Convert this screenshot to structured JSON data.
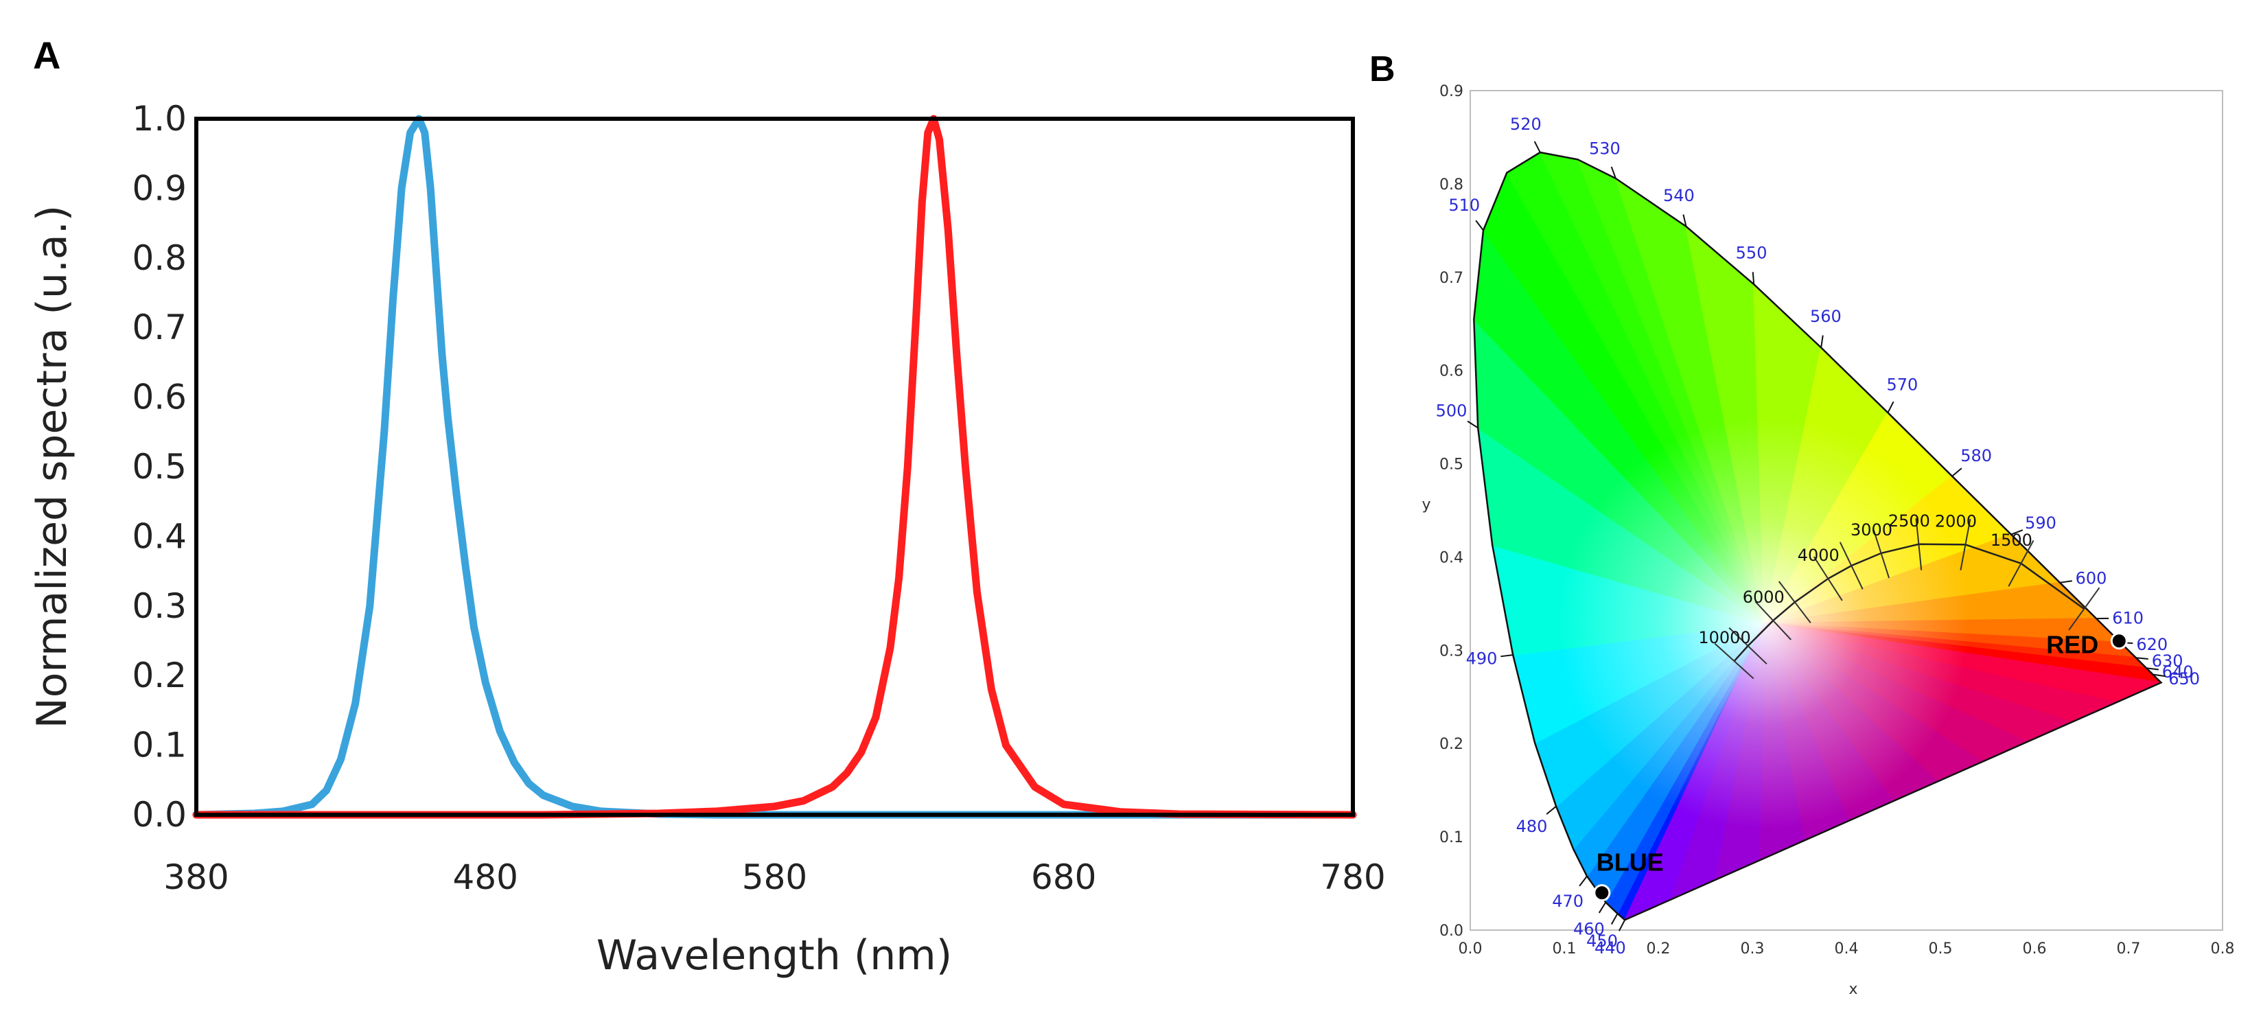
{
  "panels": {
    "a": "A",
    "b": "B"
  },
  "chart_data": [
    {
      "type": "line",
      "panel": "A",
      "xlabel": "Wavelength (nm)",
      "ylabel": "Normalized spectra (u.a.)",
      "xlim": [
        380,
        780
      ],
      "ylim": [
        0,
        1
      ],
      "x_ticks": [
        "380",
        "480",
        "580",
        "680",
        "780"
      ],
      "y_ticks": [
        "0.0",
        "0.1",
        "0.2",
        "0.3",
        "0.4",
        "0.5",
        "0.6",
        "0.7",
        "0.8",
        "0.9",
        "1.0"
      ],
      "grid": false,
      "series": [
        {
          "color": "#3aa3dc",
          "x": [
            380,
            400,
            410,
            420,
            425,
            430,
            435,
            440,
            445,
            448,
            451,
            454,
            457,
            459,
            461,
            463,
            465,
            467,
            470,
            473,
            476,
            480,
            485,
            490,
            495,
            500,
            510,
            520,
            540,
            560,
            600,
            680,
            780
          ],
          "y": [
            0,
            0.002,
            0.005,
            0.015,
            0.035,
            0.08,
            0.16,
            0.3,
            0.55,
            0.74,
            0.9,
            0.98,
            1.0,
            0.98,
            0.9,
            0.78,
            0.66,
            0.57,
            0.46,
            0.36,
            0.27,
            0.19,
            0.12,
            0.075,
            0.045,
            0.028,
            0.012,
            0.005,
            0.001,
            0,
            0,
            0,
            0
          ]
        },
        {
          "color": "#ff1f1f",
          "x": [
            380,
            500,
            540,
            560,
            580,
            590,
            600,
            605,
            610,
            615,
            620,
            623,
            626,
            629,
            631,
            633,
            635,
            637,
            640,
            643,
            646,
            650,
            655,
            660,
            670,
            680,
            700,
            720,
            780
          ],
          "y": [
            0,
            0,
            0.002,
            0.005,
            0.012,
            0.02,
            0.04,
            0.06,
            0.09,
            0.14,
            0.24,
            0.34,
            0.5,
            0.72,
            0.88,
            0.98,
            1.0,
            0.97,
            0.84,
            0.66,
            0.5,
            0.32,
            0.18,
            0.1,
            0.04,
            0.015,
            0.004,
            0.001,
            0
          ]
        }
      ]
    },
    {
      "type": "scatter",
      "panel": "B",
      "xlabel": "x",
      "ylabel": "y",
      "xlim": [
        0,
        0.8
      ],
      "ylim": [
        0,
        0.9
      ],
      "x_ticks": [
        "0.0",
        "0.1",
        "0.2",
        "0.3",
        "0.4",
        "0.5",
        "0.6",
        "0.7",
        "0.8"
      ],
      "y_ticks": [
        "0.0",
        "0.1",
        "0.2",
        "0.3",
        "0.4",
        "0.5",
        "0.6",
        "0.7",
        "0.8",
        "0.9"
      ],
      "spectral_locus": [
        {
          "nm": 440,
          "x": 0.1644,
          "y": 0.0109
        },
        {
          "nm": 450,
          "x": 0.1566,
          "y": 0.0177
        },
        {
          "nm": 460,
          "x": 0.144,
          "y": 0.0297
        },
        {
          "nm": 470,
          "x": 0.1241,
          "y": 0.0578
        },
        {
          "nm": 475,
          "x": 0.1096,
          "y": 0.0868
        },
        {
          "nm": 480,
          "x": 0.0913,
          "y": 0.1327
        },
        {
          "nm": 485,
          "x": 0.0687,
          "y": 0.2007
        },
        {
          "nm": 490,
          "x": 0.0454,
          "y": 0.295
        },
        {
          "nm": 495,
          "x": 0.0235,
          "y": 0.4127
        },
        {
          "nm": 500,
          "x": 0.0082,
          "y": 0.5384
        },
        {
          "nm": 505,
          "x": 0.0039,
          "y": 0.6548
        },
        {
          "nm": 510,
          "x": 0.0139,
          "y": 0.7502
        },
        {
          "nm": 515,
          "x": 0.0389,
          "y": 0.812
        },
        {
          "nm": 520,
          "x": 0.0743,
          "y": 0.8338
        },
        {
          "nm": 525,
          "x": 0.1142,
          "y": 0.8262
        },
        {
          "nm": 530,
          "x": 0.1547,
          "y": 0.8059
        },
        {
          "nm": 540,
          "x": 0.2296,
          "y": 0.7543
        },
        {
          "nm": 550,
          "x": 0.3016,
          "y": 0.6923
        },
        {
          "nm": 560,
          "x": 0.3731,
          "y": 0.6245
        },
        {
          "nm": 570,
          "x": 0.4441,
          "y": 0.5547
        },
        {
          "nm": 580,
          "x": 0.5125,
          "y": 0.4866
        },
        {
          "nm": 590,
          "x": 0.5752,
          "y": 0.4242
        },
        {
          "nm": 600,
          "x": 0.627,
          "y": 0.3725
        },
        {
          "nm": 610,
          "x": 0.6658,
          "y": 0.334
        },
        {
          "nm": 620,
          "x": 0.6915,
          "y": 0.3083
        },
        {
          "nm": 630,
          "x": 0.7079,
          "y": 0.292
        },
        {
          "nm": 640,
          "x": 0.719,
          "y": 0.2809
        },
        {
          "nm": 650,
          "x": 0.726,
          "y": 0.274
        },
        {
          "nm": 660,
          "x": 0.73,
          "y": 0.27
        },
        {
          "nm": 700,
          "x": 0.7347,
          "y": 0.2653
        }
      ],
      "wavelength_labels": [
        {
          "text": "520",
          "nm": 520
        },
        {
          "text": "530",
          "nm": 530
        },
        {
          "text": "540",
          "nm": 540
        },
        {
          "text": "550",
          "nm": 550
        },
        {
          "text": "560",
          "nm": 560
        },
        {
          "text": "570",
          "nm": 570
        },
        {
          "text": "580",
          "nm": 580
        },
        {
          "text": "590",
          "nm": 590
        },
        {
          "text": "600",
          "nm": 600
        },
        {
          "text": "610",
          "nm": 610
        },
        {
          "text": "620",
          "nm": 620
        },
        {
          "text": "630",
          "nm": 630
        },
        {
          "text": "640",
          "nm": 640
        },
        {
          "text": "650",
          "nm": 650
        },
        {
          "text": "510",
          "nm": 510
        },
        {
          "text": "500",
          "nm": 500
        },
        {
          "text": "490",
          "nm": 490
        },
        {
          "text": "480",
          "nm": 480
        },
        {
          "text": "470",
          "nm": 470
        },
        {
          "text": "460",
          "nm": 460
        },
        {
          "text": "450",
          "nm": 450
        },
        {
          "text": "440",
          "nm": 440
        }
      ],
      "planckian_locus": [
        {
          "cct": 10000,
          "x": 0.2807,
          "y": 0.2884
        },
        {
          "cct": 8000,
          "x": 0.2953,
          "y": 0.3047
        },
        {
          "cct": 6000,
          "x": 0.3221,
          "y": 0.3318
        },
        {
          "cct": 5000,
          "x": 0.3451,
          "y": 0.3516
        },
        {
          "cct": 4000,
          "x": 0.3805,
          "y": 0.3768
        },
        {
          "cct": 3500,
          "x": 0.4053,
          "y": 0.3907
        },
        {
          "cct": 3000,
          "x": 0.4369,
          "y": 0.4041
        },
        {
          "cct": 2500,
          "x": 0.4769,
          "y": 0.4137
        },
        {
          "cct": 2000,
          "x": 0.5266,
          "y": 0.4133
        },
        {
          "cct": 1500,
          "x": 0.5857,
          "y": 0.3931
        },
        {
          "cct": 1000,
          "x": 0.6528,
          "y": 0.3444
        }
      ],
      "cct_labels": [
        "10000",
        "6000",
        "4000",
        "3000",
        "2500",
        "2000",
        "1500"
      ],
      "points": [
        {
          "label": "BLUE",
          "x": 0.14,
          "y": 0.04
        },
        {
          "label": "RED",
          "x": 0.69,
          "y": 0.31
        }
      ],
      "colors": {
        "wavelength_label": "#2a2ad6",
        "locus": "#111111"
      }
    }
  ]
}
